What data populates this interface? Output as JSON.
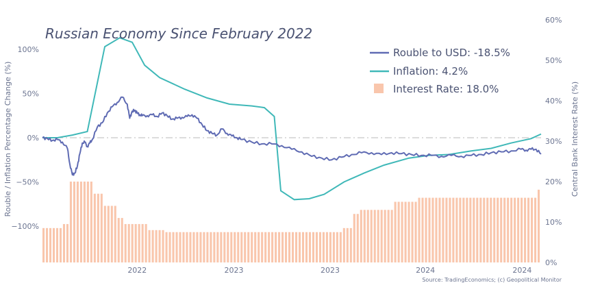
{
  "chart_data": {
    "type": "line",
    "title": "Russian Economy Since February 2022",
    "source": "Source: TradingEconomics; (c) Geopolitical Monitor",
    "ylabel_left": "Rouble / Inflation Percentage Change (%)",
    "ylabel_right": "Central Bank Interest Rate (%)",
    "left_ticks": [
      "100%",
      "50%",
      "0%",
      "−50%",
      "−100%"
    ],
    "left_tick_values": [
      100,
      50,
      0,
      -50,
      -100
    ],
    "right_ticks": [
      "60%",
      "50%",
      "40%",
      "30%",
      "20%",
      "10%",
      "0%"
    ],
    "right_tick_values": [
      60,
      50,
      40,
      30,
      20,
      10,
      0
    ],
    "x_ticks": [
      "2022",
      "2023",
      "2023",
      "2024",
      "2024"
    ],
    "x_tick_positions": [
      0.19,
      0.384,
      0.577,
      0.768,
      0.962
    ],
    "ylim_left": [
      -140,
      135
    ],
    "ylim_right": [
      0,
      60
    ],
    "colors": {
      "rouble": "#5f6bb3",
      "inflation": "#3fb8b8",
      "rate": "#f9c6ac",
      "zero_line": "#c8c8c8",
      "axis_text": "#6b7490",
      "title": "#4a5272"
    },
    "series": [
      {
        "name": "Rouble to USD",
        "legend": "Rouble to USD: -18.5%",
        "x": [
          0.0,
          0.01,
          0.02,
          0.03,
          0.04,
          0.05,
          0.055,
          0.06,
          0.065,
          0.07,
          0.075,
          0.08,
          0.085,
          0.09,
          0.095,
          0.1,
          0.11,
          0.12,
          0.13,
          0.14,
          0.15,
          0.16,
          0.17,
          0.175,
          0.18,
          0.185,
          0.19,
          0.195,
          0.2,
          0.21,
          0.22,
          0.23,
          0.24,
          0.25,
          0.26,
          0.27,
          0.28,
          0.29,
          0.3,
          0.31,
          0.32,
          0.33,
          0.34,
          0.35,
          0.36,
          0.37,
          0.38,
          0.39,
          0.4,
          0.42,
          0.44,
          0.46,
          0.48,
          0.5,
          0.52,
          0.54,
          0.56,
          0.58,
          0.6,
          0.62,
          0.64,
          0.66,
          0.68,
          0.7,
          0.72,
          0.74,
          0.76,
          0.78,
          0.8,
          0.82,
          0.84,
          0.86,
          0.88,
          0.9,
          0.92,
          0.94,
          0.96,
          0.97,
          0.98,
          0.99,
          1.0
        ],
        "values": [
          0,
          -1,
          -3,
          -2,
          -5,
          -12,
          -30,
          -42,
          -40,
          -32,
          -18,
          -6,
          -5,
          -10,
          -6,
          -2,
          12,
          17,
          28,
          35,
          40,
          46,
          38,
          22,
          30,
          31,
          28,
          26,
          25,
          25,
          26,
          24,
          28,
          25,
          21,
          22,
          23,
          24,
          26,
          22,
          15,
          8,
          5,
          3,
          10,
          5,
          2,
          0,
          -2,
          -5,
          -7,
          -7,
          -9,
          -13,
          -16,
          -21,
          -23,
          -25,
          -22,
          -19,
          -17,
          -17,
          -19,
          -17,
          -18,
          -19,
          -20,
          -20,
          -21,
          -20,
          -21,
          -20,
          -19,
          -17,
          -16,
          -15,
          -13,
          -14,
          -13,
          -13,
          -18.5
        ]
      },
      {
        "name": "Inflation",
        "legend": "Inflation: 4.2%",
        "x": [
          0.0,
          0.03,
          0.06,
          0.09,
          0.125,
          0.155,
          0.18,
          0.205,
          0.235,
          0.285,
          0.33,
          0.375,
          0.42,
          0.445,
          0.465,
          0.478,
          0.505,
          0.535,
          0.565,
          0.605,
          0.645,
          0.685,
          0.735,
          0.775,
          0.815,
          0.86,
          0.9,
          0.94,
          0.98,
          1.0
        ],
        "values": [
          0,
          0,
          3,
          7,
          103,
          113,
          108,
          82,
          68,
          55,
          45,
          38,
          36,
          34,
          24,
          -60,
          -70,
          -69,
          -64,
          -50,
          -40,
          -31,
          -23,
          -20,
          -19,
          -15,
          -12,
          -6,
          -1,
          4.2
        ]
      },
      {
        "name": "Interest Rate",
        "legend": "Interest Rate: 18.0%",
        "type": "bar",
        "x0": 0.0,
        "x1": 1.0,
        "steps": [
          [
            0.0,
            8.5
          ],
          [
            0.044,
            9.5
          ],
          [
            0.058,
            20
          ],
          [
            0.103,
            17
          ],
          [
            0.124,
            14
          ],
          [
            0.149,
            11
          ],
          [
            0.167,
            9.5
          ],
          [
            0.21,
            8
          ],
          [
            0.245,
            7.5
          ],
          [
            0.295,
            7.5
          ],
          [
            0.597,
            7.5
          ],
          [
            0.603,
            8.5
          ],
          [
            0.62,
            12
          ],
          [
            0.64,
            13
          ],
          [
            0.657,
            13
          ],
          [
            0.68,
            13
          ],
          [
            0.703,
            15
          ],
          [
            0.75,
            15
          ],
          [
            0.755,
            16
          ],
          [
            0.98,
            16
          ],
          [
            0.99,
            18
          ]
        ]
      }
    ],
    "grid": false,
    "legend_position": "top-right"
  }
}
